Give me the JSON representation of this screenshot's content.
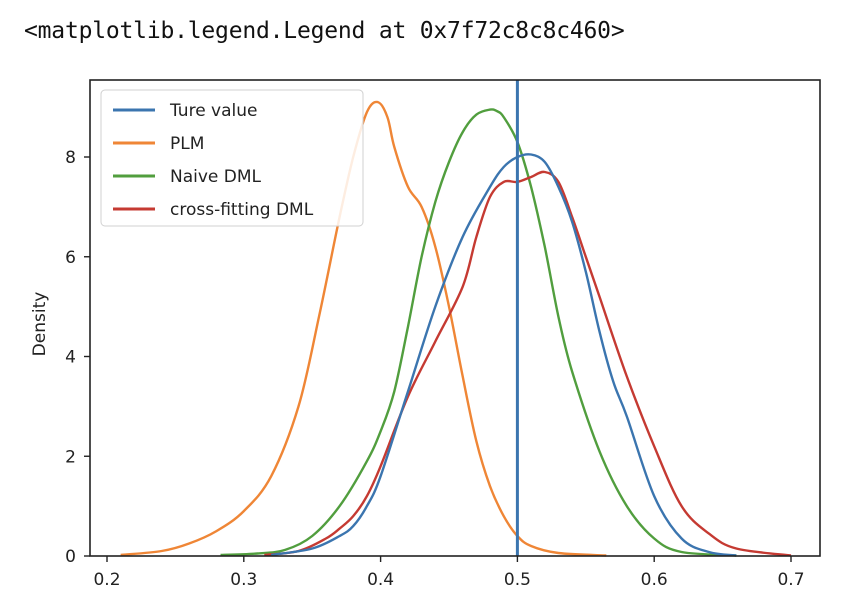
{
  "output_text": "<matplotlib.legend.Legend at 0x7f72c8c8c460>",
  "chart_data": {
    "type": "line",
    "title": "",
    "xlabel": "",
    "ylabel": "Density",
    "xlim": [
      0.187,
      0.722
    ],
    "ylim": [
      0,
      9.5
    ],
    "x_ticks": [
      0.2,
      0.3,
      0.4,
      0.5,
      0.6,
      0.7
    ],
    "x_tick_labels": [
      "0.2",
      "0.3",
      "0.4",
      "0.5",
      "0.6",
      "0.7"
    ],
    "y_ticks": [
      0,
      2,
      4,
      6,
      8
    ],
    "y_tick_labels": [
      "0",
      "2",
      "4",
      "6",
      "8"
    ],
    "grid": false,
    "legend_position": "upper left",
    "vertical_line": {
      "name": "Ture value",
      "x": 0.5,
      "color": "#3b75af"
    },
    "series": [
      {
        "name": "PLM",
        "color": "#ef8636",
        "x": [
          0.21,
          0.24,
          0.26,
          0.28,
          0.3,
          0.32,
          0.34,
          0.355,
          0.37,
          0.38,
          0.39,
          0.398,
          0.405,
          0.41,
          0.42,
          0.43,
          0.44,
          0.45,
          0.46,
          0.47,
          0.48,
          0.49,
          0.5,
          0.51,
          0.53,
          0.565
        ],
        "y": [
          0.02,
          0.1,
          0.25,
          0.5,
          0.9,
          1.6,
          3.0,
          4.8,
          6.8,
          8.0,
          8.9,
          9.1,
          8.8,
          8.2,
          7.4,
          7.0,
          6.2,
          5.0,
          3.6,
          2.3,
          1.4,
          0.8,
          0.4,
          0.2,
          0.06,
          0.01
        ]
      },
      {
        "name": "Naive DML",
        "color": "#519e3e",
        "x": [
          0.283,
          0.31,
          0.33,
          0.35,
          0.37,
          0.39,
          0.4,
          0.41,
          0.42,
          0.43,
          0.44,
          0.45,
          0.46,
          0.47,
          0.48,
          0.485,
          0.49,
          0.5,
          0.51,
          0.52,
          0.53,
          0.54,
          0.56,
          0.58,
          0.6,
          0.62,
          0.66
        ],
        "y": [
          0.02,
          0.05,
          0.12,
          0.4,
          1.0,
          1.9,
          2.5,
          3.3,
          4.6,
          6.0,
          7.1,
          7.9,
          8.5,
          8.85,
          8.95,
          8.92,
          8.8,
          8.3,
          7.4,
          6.2,
          4.8,
          3.7,
          2.1,
          1.0,
          0.35,
          0.08,
          0.01
        ]
      },
      {
        "name": "cross-fitting DML",
        "color": "#c53a32",
        "x": [
          0.315,
          0.34,
          0.36,
          0.37,
          0.38,
          0.39,
          0.4,
          0.42,
          0.44,
          0.46,
          0.47,
          0.48,
          0.49,
          0.5,
          0.51,
          0.52,
          0.53,
          0.54,
          0.55,
          0.56,
          0.58,
          0.6,
          0.62,
          0.64,
          0.66,
          0.7
        ],
        "y": [
          0.02,
          0.1,
          0.35,
          0.55,
          0.8,
          1.2,
          1.8,
          3.2,
          4.3,
          5.4,
          6.4,
          7.2,
          7.5,
          7.5,
          7.6,
          7.7,
          7.5,
          6.8,
          6.0,
          5.2,
          3.6,
          2.2,
          1.0,
          0.45,
          0.15,
          0.01
        ]
      },
      {
        "name": "Ture value",
        "color": "#3b75af",
        "x": [
          0.32,
          0.35,
          0.37,
          0.38,
          0.39,
          0.4,
          0.42,
          0.44,
          0.46,
          0.48,
          0.49,
          0.5,
          0.51,
          0.52,
          0.53,
          0.54,
          0.55,
          0.56,
          0.57,
          0.58,
          0.6,
          0.62,
          0.64,
          0.66
        ],
        "y": [
          0.02,
          0.15,
          0.4,
          0.6,
          1.0,
          1.6,
          3.3,
          5.0,
          6.4,
          7.4,
          7.8,
          8.0,
          8.05,
          7.9,
          7.4,
          6.7,
          5.7,
          4.5,
          3.5,
          2.8,
          1.2,
          0.35,
          0.08,
          0.01
        ]
      }
    ],
    "legend": [
      {
        "label": "Ture value",
        "color": "#3b75af"
      },
      {
        "label": "PLM",
        "color": "#ef8636"
      },
      {
        "label": "Naive DML",
        "color": "#519e3e"
      },
      {
        "label": "cross-fitting DML",
        "color": "#c53a32"
      }
    ]
  }
}
